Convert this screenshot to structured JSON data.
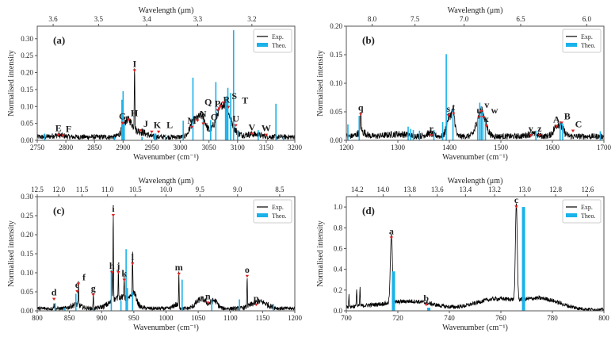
{
  "colors": {
    "exp": "#000000",
    "theo": "#1ab2ea",
    "marker": "#e02020",
    "axis": "#555555"
  },
  "chart_data": [
    {
      "id": "a",
      "type": "line",
      "panel_label": "(a)",
      "xlabel": "Wavenumber (cm⁻¹)",
      "ylabel": "Normalised intensity",
      "top_xlabel": "Wavelength (μm)",
      "legend": [
        "Exp.",
        "Theo."
      ],
      "legend_position": "top-right",
      "xlim": [
        2750,
        3200
      ],
      "ylim": [
        0,
        0.337
      ],
      "xticks": [
        2750,
        2800,
        2850,
        2900,
        2950,
        3000,
        3050,
        3100,
        3150,
        3200
      ],
      "yticks": [
        0.0,
        0.05,
        0.1,
        0.15,
        0.2,
        0.25,
        0.3
      ],
      "top_ticks": [
        3.6,
        3.5,
        3.4,
        3.3,
        3.2
      ],
      "exp": {
        "baseline": 0.01,
        "noise": 0.012,
        "bands": [
          [
            2787,
            0.005,
            10
          ],
          [
            2908,
            0.05,
            8
          ],
          [
            2920,
            0.195,
            0.5
          ],
          [
            2930,
            0.015,
            10
          ],
          [
            3020,
            0.02,
            5
          ],
          [
            3030,
            0.045,
            8
          ],
          [
            3040,
            0.035,
            6
          ],
          [
            3075,
            0.095,
            12
          ],
          [
            3125,
            0.008,
            15
          ]
        ]
      },
      "theo": [
        [
          2763,
          0.02
        ],
        [
          2885,
          0.01
        ],
        [
          2898,
          0.12
        ],
        [
          2900,
          0.145
        ],
        [
          2902,
          0.05
        ],
        [
          2933,
          0.01
        ],
        [
          2955,
          0.02
        ],
        [
          2957,
          0.02
        ],
        [
          2974,
          0.015
        ],
        [
          3005,
          0.058
        ],
        [
          3022,
          0.185
        ],
        [
          3040,
          0.06
        ],
        [
          3053,
          0.06
        ],
        [
          3062,
          0.172
        ],
        [
          3079,
          0.12
        ],
        [
          3081,
          0.13
        ],
        [
          3083,
          0.155
        ],
        [
          3088,
          0.14
        ],
        [
          3093,
          0.325
        ],
        [
          3100,
          0.03
        ],
        [
          3136,
          0.03
        ],
        [
          3167,
          0.108
        ],
        [
          3180,
          0.01
        ]
      ],
      "peaks": [
        [
          "E",
          2787,
          0.015
        ],
        [
          "F",
          2795,
          0.013
        ],
        [
          "G",
          2899,
          0.05
        ],
        [
          "H",
          2910,
          0.06
        ],
        [
          "I",
          2920,
          0.205
        ],
        [
          "J",
          2930,
          0.028
        ],
        [
          "K",
          2950,
          0.024
        ],
        [
          "L",
          2962,
          0.024
        ],
        [
          "M",
          3020,
          0.038
        ],
        [
          "N",
          3030,
          0.057
        ],
        [
          "O",
          3040,
          0.048
        ],
        [
          "P",
          3065,
          0.088
        ],
        [
          "Q",
          3068,
          0.093
        ],
        [
          "R",
          3071,
          0.1
        ],
        [
          "S",
          3075,
          0.11
        ],
        [
          "T",
          3084,
          0.097
        ],
        [
          "U",
          3097,
          0.043
        ],
        [
          "V",
          3125,
          0.018
        ],
        [
          "W",
          3150,
          0.015
        ]
      ]
    },
    {
      "id": "b",
      "type": "line",
      "panel_label": "(b)",
      "xlabel": "Wavenumber (cm⁻¹)",
      "ylabel": "Normalised intensity",
      "top_xlabel": "Wavelength (μm)",
      "legend": [
        "Exp.",
        "Theo."
      ],
      "legend_position": "top-right",
      "xlim": [
        1200,
        1700
      ],
      "ylim": [
        0,
        0.2
      ],
      "xticks": [
        1200,
        1300,
        1400,
        1500,
        1600,
        1700
      ],
      "yticks": [
        0.0,
        0.05,
        0.1,
        0.15,
        0.2
      ],
      "top_ticks": [
        8.0,
        7.5,
        7.0,
        6.5,
        6.0
      ],
      "exp": {
        "baseline": 0.007,
        "noise": 0.008,
        "bands": [
          [
            1228,
            0.03,
            1
          ],
          [
            1230,
            0.008,
            8
          ],
          [
            1300,
            0.004,
            20
          ],
          [
            1362,
            0.005,
            8
          ],
          [
            1400,
            0.035,
            5
          ],
          [
            1408,
            0.035,
            3
          ],
          [
            1462,
            0.045,
            8
          ],
          [
            1560,
            0.004,
            10
          ],
          [
            1612,
            0.022,
            8
          ]
        ]
      },
      "theo": [
        [
          1203,
          0.028
        ],
        [
          1225,
          0.043
        ],
        [
          1320,
          0.024
        ],
        [
          1325,
          0.02
        ],
        [
          1330,
          0.018
        ],
        [
          1342,
          0.017
        ],
        [
          1370,
          0.018
        ],
        [
          1387,
          0.032
        ],
        [
          1394,
          0.151
        ],
        [
          1407,
          0.055
        ],
        [
          1455,
          0.04
        ],
        [
          1459,
          0.066
        ],
        [
          1462,
          0.06
        ],
        [
          1465,
          0.05
        ],
        [
          1470,
          0.035
        ],
        [
          1568,
          0.017
        ],
        [
          1615,
          0.03
        ],
        [
          1620,
          0.03
        ],
        [
          1693,
          0.016
        ]
      ],
      "peaks": [
        [
          "q",
          1228,
          0.045
        ],
        [
          "r",
          1365,
          0.008
        ],
        [
          "s",
          1398,
          0.043
        ],
        [
          "t",
          1408,
          0.046
        ],
        [
          "u",
          1458,
          0.04
        ],
        [
          "v",
          1462,
          0.05
        ],
        [
          "w",
          1466,
          0.04
        ],
        [
          "x",
          1472,
          0.025
        ],
        [
          "y",
          1558,
          0.008
        ],
        [
          "z",
          1575,
          0.008
        ],
        [
          "A",
          1608,
          0.024
        ],
        [
          "B",
          1618,
          0.03
        ],
        [
          "C",
          1640,
          0.016
        ]
      ]
    },
    {
      "id": "c",
      "type": "line",
      "panel_label": "(c)",
      "xlabel": "Wavenumber (cm⁻¹)",
      "ylabel": "Normalised intensity",
      "top_xlabel": "Wavelength (μm)",
      "legend": [
        "Exp.",
        "Theo."
      ],
      "legend_position": "top-right",
      "xlim": [
        800,
        1200
      ],
      "ylim": [
        0,
        0.3
      ],
      "xticks": [
        800,
        850,
        900,
        950,
        1000,
        1050,
        1100,
        1150,
        1200
      ],
      "yticks": [
        0.0,
        0.05,
        0.1,
        0.15,
        0.2,
        0.25,
        0.3
      ],
      "top_ticks": [
        12.5,
        12.0,
        11.5,
        11.0,
        10.5,
        10.0,
        9.5,
        9.0,
        8.5
      ],
      "exp": {
        "baseline": 0.006,
        "noise": 0.008,
        "bands": [
          [
            826,
            0.02,
            0.4
          ],
          [
            860,
            0.01,
            8
          ],
          [
            864,
            0.06,
            0.4
          ],
          [
            887,
            0.035,
            0.4
          ],
          [
            916,
            0.08,
            0.4
          ],
          [
            918,
            0.24,
            0.4
          ],
          [
            926,
            0.08,
            0.4
          ],
          [
            930,
            0.03,
            15
          ],
          [
            935,
            0.06,
            0.4
          ],
          [
            948,
            0.11,
            0.4
          ],
          [
            950,
            0.03,
            4
          ],
          [
            1015,
            0.01,
            4
          ],
          [
            1020,
            0.09,
            0.4
          ],
          [
            1055,
            0.025,
            8
          ],
          [
            1075,
            0.02,
            5
          ],
          [
            1126,
            0.085,
            0.4
          ],
          [
            1145,
            0.018,
            12
          ]
        ]
      },
      "theo": [
        [
          828,
          0.02
        ],
        [
          843,
          0.008
        ],
        [
          860,
          0.045
        ],
        [
          887,
          0.005
        ],
        [
          915,
          0.108
        ],
        [
          930,
          0.027
        ],
        [
          938,
          0.162
        ],
        [
          940,
          0.06
        ],
        [
          948,
          0.05
        ],
        [
          1025,
          0.082
        ],
        [
          1071,
          0.03
        ],
        [
          1114,
          0.03
        ],
        [
          1167,
          0.018
        ]
      ],
      "peaks": [
        [
          "d",
          826,
          0.03
        ],
        [
          "e",
          862,
          0.05
        ],
        [
          "f",
          864,
          0.07
        ],
        [
          "g",
          887,
          0.041
        ],
        [
          "h",
          916,
          0.1
        ],
        [
          "i",
          918,
          0.25
        ],
        [
          "j",
          926,
          0.1
        ],
        [
          "k",
          935,
          0.08
        ],
        [
          "l",
          948,
          0.123
        ],
        [
          "m",
          1020,
          0.096
        ],
        [
          "n",
          1065,
          0.02
        ],
        [
          "o",
          1126,
          0.09
        ],
        [
          "p",
          1140,
          0.015
        ]
      ]
    },
    {
      "id": "d",
      "type": "line",
      "panel_label": "(d)",
      "xlabel": "Wavenumber (cm⁻¹)",
      "ylabel": "Normalised intensity",
      "top_xlabel": "Wavelength (μm)",
      "legend": [
        "Exp.",
        "Theo."
      ],
      "legend_position": "top-right",
      "xlim": [
        700,
        800
      ],
      "ylim": [
        0,
        1.1
      ],
      "xticks": [
        700,
        720,
        740,
        760,
        780,
        800
      ],
      "yticks": [
        0.0,
        0.2,
        0.4,
        0.6,
        0.8,
        1.0
      ],
      "top_ticks": [
        14.2,
        14.0,
        13.8,
        13.6,
        13.4,
        13.2,
        13.0,
        12.8,
        12.6
      ],
      "exp": {
        "baseline": 0.012,
        "noise": 0.02,
        "bands": [
          [
            701,
            0.12,
            0.1
          ],
          [
            704,
            0.18,
            0.1
          ],
          [
            705.3,
            0.18,
            0.1
          ],
          [
            712,
            0.04,
            12
          ],
          [
            717.5,
            0.65,
            0.4
          ],
          [
            727,
            0.06,
            8
          ],
          [
            758,
            0.1,
            8
          ],
          [
            766,
            0.93,
            0.35
          ],
          [
            776,
            0.1,
            7
          ]
        ]
      },
      "theo": [
        [
          718.3,
          0.38
        ],
        [
          732,
          0.03
        ],
        [
          768.8,
          1.0
        ]
      ],
      "peaks": [
        [
          "a",
          717.5,
          0.7
        ],
        [
          "b",
          731,
          0.055
        ],
        [
          "c",
          766,
          1.0
        ]
      ]
    }
  ]
}
